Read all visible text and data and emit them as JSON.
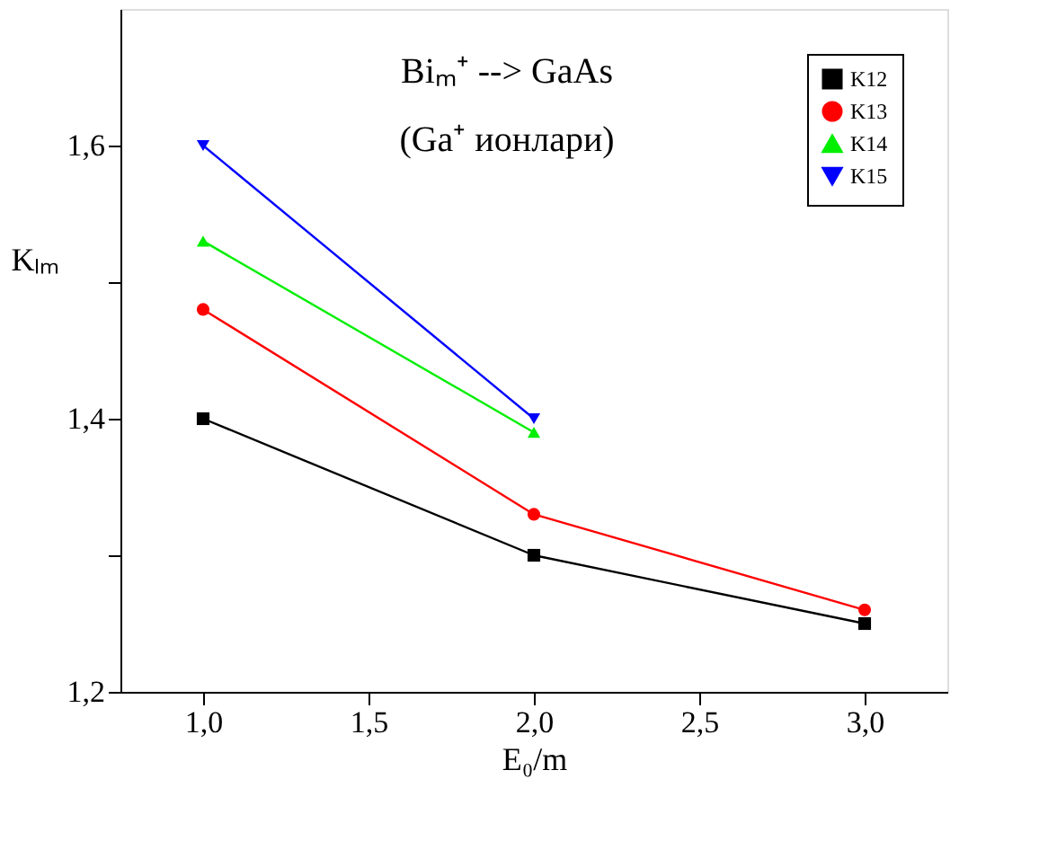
{
  "chart_data": {
    "type": "line",
    "title": "Biₘ⁺ --> GaAs",
    "subtitle": "(Ga⁺ ионлари)",
    "xlabel": "E₀/m",
    "ylabel": "Kₗₘ",
    "x": [
      1.0,
      2.0,
      3.0
    ],
    "series": [
      {
        "name": "K12",
        "color": "#000000",
        "marker": "square",
        "values": [
          1.4,
          1.3,
          1.25
        ]
      },
      {
        "name": "K13",
        "color": "#ff0000",
        "marker": "circle",
        "values": [
          1.48,
          1.33,
          1.26
        ]
      },
      {
        "name": "K14",
        "color": "#00ee00",
        "marker": "triangle",
        "values": [
          1.53,
          1.39,
          null
        ]
      },
      {
        "name": "K15",
        "color": "#0000ff",
        "marker": "triangle-down",
        "values": [
          1.6,
          1.4,
          null
        ]
      }
    ],
    "xlim": [
      0.75,
      3.25
    ],
    "xticks": [
      {
        "value": 1.0,
        "label": "1,0"
      },
      {
        "value": 1.5,
        "label": "1,5"
      },
      {
        "value": 2.0,
        "label": "2,0"
      },
      {
        "value": 2.5,
        "label": "2,5"
      },
      {
        "value": 3.0,
        "label": "3,0"
      }
    ],
    "ylim": [
      1.2,
      1.7
    ],
    "yticks": [
      {
        "value": 1.2,
        "label": "1,2"
      },
      {
        "value": 1.3,
        "label": null
      },
      {
        "value": 1.4,
        "label": "1,4"
      },
      {
        "value": 1.5,
        "label": null
      },
      {
        "value": 1.6,
        "label": "1,6"
      }
    ],
    "grid": false,
    "legend": "top right",
    "line_style": "solid"
  }
}
